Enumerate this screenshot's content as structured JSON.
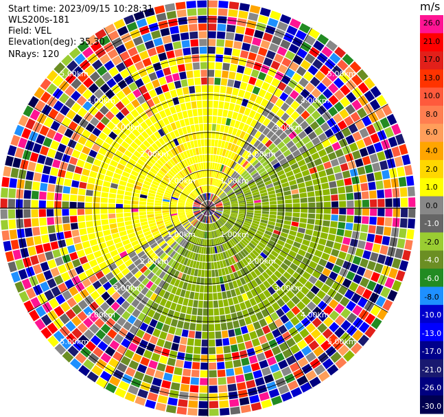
{
  "header": {
    "start_time": "Start time: 2023/09/15 10:28:31",
    "instrument": "WLS200s-181",
    "field": "Field: VEL",
    "elevation": "Elevation(deg): 35.30",
    "nrays": "NRays: 120"
  },
  "chart_data": {
    "type": "heatmap",
    "projection": "polar (PPI scan)",
    "field": "VEL",
    "elevation_deg": 35.3,
    "n_rays": 120,
    "range_rings_km": [
      1.0,
      2.0,
      3.0,
      4.0,
      5.0
    ],
    "ring_labels": [
      "1.00km",
      "2.00km",
      "3.00km",
      "4.00km",
      "5.00km"
    ],
    "spoke_angles_deg": [
      0,
      30,
      60,
      90,
      120,
      150,
      180,
      210,
      240,
      270,
      300,
      330
    ],
    "max_range_km": 5.5,
    "pattern": {
      "inner_range_km": 3.2,
      "positive_sector_center_deg": 315,
      "positive_color": "#ffff00",
      "negative_color": "#8db600",
      "near_zero_color": "#808080",
      "outer_region": "noisy / random velocities"
    },
    "colorbar": {
      "unit": "m/s",
      "ticks": [
        "26.0",
        "21.0",
        "17.0",
        "13.0",
        "10.0",
        "8.0",
        "6.0",
        "4.0",
        "2.0",
        "1.0",
        "0.0",
        "-1.0",
        "-2.0",
        "-4.0",
        "-6.0",
        "-8.0",
        "-10.0",
        "-13.0",
        "-17.0",
        "-21.0",
        "-26.0",
        "-30.0"
      ],
      "colors": [
        "#ff1493",
        "#ff0000",
        "#e2201a",
        "#ff3300",
        "#ff5a3c",
        "#ff7e50",
        "#ff9e5a",
        "#ffa500",
        "#ffd700",
        "#ffff00",
        "#888888",
        "#666666",
        "#9acd32",
        "#6b8e23",
        "#228b22",
        "#1e90ff",
        "#0000cd",
        "#0000ff",
        "#00008b",
        "#191970",
        "#000080",
        "#000050"
      ]
    }
  }
}
